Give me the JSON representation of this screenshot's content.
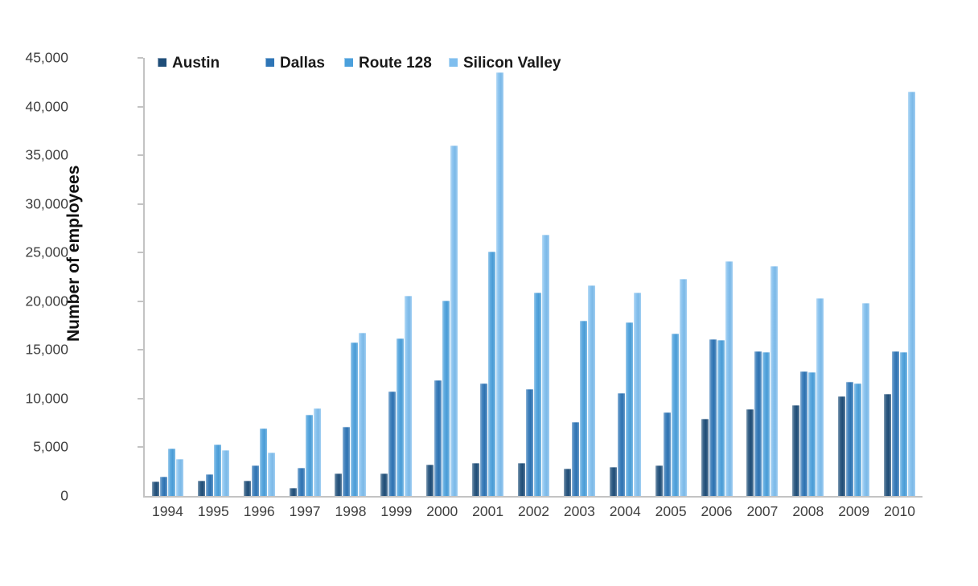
{
  "chart_data": {
    "type": "bar",
    "title": "",
    "xlabel": "",
    "ylabel": "Number of employees",
    "ylim": [
      0,
      45000
    ],
    "y_step": 5000,
    "y_tick_labels": [
      "0",
      "5,000",
      "10,000",
      "15,000",
      "20,000",
      "25,000",
      "30,000",
      "35,000",
      "40,000",
      "45,000"
    ],
    "grid": false,
    "legend_position": "top",
    "axis_color": "#c3c3c3",
    "tick_label_color": "#3f3f3f",
    "categories": [
      "1994",
      "1995",
      "1996",
      "1997",
      "1998",
      "1999",
      "2000",
      "2001",
      "2002",
      "2003",
      "2004",
      "2005",
      "2006",
      "2007",
      "2008",
      "2009",
      "2010"
    ],
    "series": [
      {
        "name": "Austin",
        "color": "#1F4E79",
        "values": [
          1500,
          1600,
          1600,
          800,
          2300,
          2300,
          3200,
          3400,
          3400,
          2800,
          3000,
          3100,
          7900,
          8900,
          9300,
          10200,
          10500
        ]
      },
      {
        "name": "Dallas",
        "color": "#2E75B6",
        "values": [
          2000,
          2200,
          3100,
          2900,
          7100,
          10700,
          11900,
          11600,
          11000,
          7600,
          10600,
          8600,
          16100,
          14900,
          12800,
          11700,
          14900
        ]
      },
      {
        "name": "Route 128",
        "color": "#4BA0DC",
        "values": [
          4900,
          5300,
          6900,
          8300,
          15800,
          16200,
          20100,
          25100,
          20900,
          18000,
          17800,
          16700,
          16000,
          14800,
          12700,
          11600,
          14800
        ]
      },
      {
        "name": "Silicon Valley",
        "color": "#7FBEEE",
        "values": [
          3800,
          4700,
          4500,
          9000,
          16800,
          20600,
          36000,
          43500,
          26800,
          21600,
          20900,
          22300,
          24100,
          23600,
          20300,
          19800,
          41500
        ]
      }
    ]
  }
}
